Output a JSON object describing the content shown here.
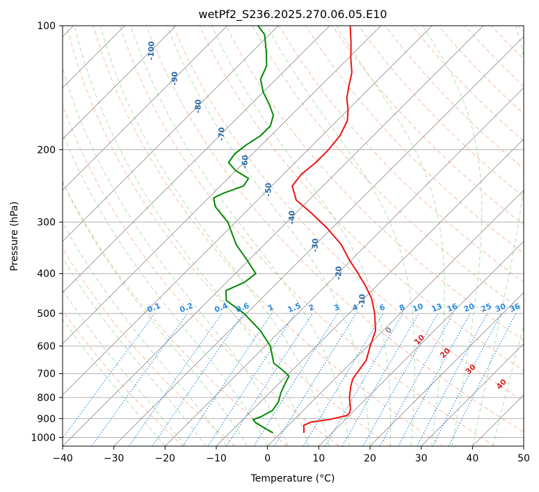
{
  "chart_data": {
    "type": "line",
    "title": "wetPf2_S236.2025.270.06.05.E10",
    "xlabel": "Temperature (°C)",
    "ylabel": "Pressure (hPa)",
    "xlim": [
      -40,
      50
    ],
    "ylim": [
      1050,
      100
    ],
    "y_scale": "log",
    "skew": "45 degree skew-T log-P",
    "grid": true,
    "x_ticks": [
      -40,
      -30,
      -20,
      -10,
      0,
      10,
      20,
      30,
      40,
      50
    ],
    "y_ticks": [
      100,
      200,
      300,
      400,
      500,
      600,
      700,
      800,
      900,
      1000
    ],
    "series": [
      {
        "name": "Temperature",
        "color": "#ee1111",
        "points": [
          {
            "p": 975,
            "t": 4.5
          },
          {
            "p": 955,
            "t": 3.8
          },
          {
            "p": 935,
            "t": 3.0
          },
          {
            "p": 918,
            "t": 3.8
          },
          {
            "p": 905,
            "t": 6.8
          },
          {
            "p": 885,
            "t": 9.5
          },
          {
            "p": 870,
            "t": 9.5
          },
          {
            "p": 850,
            "t": 8.8
          },
          {
            "p": 800,
            "t": 6.5
          },
          {
            "p": 750,
            "t": 4.5
          },
          {
            "p": 720,
            "t": 3.5
          },
          {
            "p": 700,
            "t": 3.2
          },
          {
            "p": 650,
            "t": 2.5
          },
          {
            "p": 600,
            "t": 0.5
          },
          {
            "p": 550,
            "t": -1.5
          },
          {
            "p": 500,
            "t": -5.0
          },
          {
            "p": 460,
            "t": -8.5
          },
          {
            "p": 430,
            "t": -12.0
          },
          {
            "p": 400,
            "t": -16.0
          },
          {
            "p": 370,
            "t": -20.5
          },
          {
            "p": 340,
            "t": -25.0
          },
          {
            "p": 310,
            "t": -31.0
          },
          {
            "p": 285,
            "t": -37.0
          },
          {
            "p": 265,
            "t": -42.5
          },
          {
            "p": 245,
            "t": -46.0
          },
          {
            "p": 230,
            "t": -46.5
          },
          {
            "p": 215,
            "t": -46.0
          },
          {
            "p": 200,
            "t": -46.0
          },
          {
            "p": 185,
            "t": -46.5
          },
          {
            "p": 170,
            "t": -48.0
          },
          {
            "p": 160,
            "t": -50.0
          },
          {
            "p": 150,
            "t": -52.5
          },
          {
            "p": 140,
            "t": -54.5
          },
          {
            "p": 130,
            "t": -56.5
          },
          {
            "p": 120,
            "t": -59.5
          },
          {
            "p": 110,
            "t": -62.5
          },
          {
            "p": 100,
            "t": -66.0
          }
        ]
      },
      {
        "name": "Dewpoint",
        "color": "#008800",
        "points": [
          {
            "p": 975,
            "t": -1.5
          },
          {
            "p": 945,
            "t": -4.5
          },
          {
            "p": 920,
            "t": -7.0
          },
          {
            "p": 905,
            "t": -8.0
          },
          {
            "p": 890,
            "t": -7.0
          },
          {
            "p": 860,
            "t": -6.0
          },
          {
            "p": 820,
            "t": -6.5
          },
          {
            "p": 780,
            "t": -7.8
          },
          {
            "p": 740,
            "t": -8.8
          },
          {
            "p": 710,
            "t": -9.5
          },
          {
            "p": 690,
            "t": -11.5
          },
          {
            "p": 660,
            "t": -15.0
          },
          {
            "p": 600,
            "t": -19.0
          },
          {
            "p": 550,
            "t": -24.0
          },
          {
            "p": 500,
            "t": -30.5
          },
          {
            "p": 465,
            "t": -36.5
          },
          {
            "p": 440,
            "t": -38.5
          },
          {
            "p": 420,
            "t": -36.5
          },
          {
            "p": 400,
            "t": -36.0
          },
          {
            "p": 370,
            "t": -40.5
          },
          {
            "p": 340,
            "t": -45.5
          },
          {
            "p": 300,
            "t": -51.5
          },
          {
            "p": 275,
            "t": -57.0
          },
          {
            "p": 262,
            "t": -59.0
          },
          {
            "p": 255,
            "t": -58.0
          },
          {
            "p": 245,
            "t": -55.5
          },
          {
            "p": 235,
            "t": -56.0
          },
          {
            "p": 225,
            "t": -60.0
          },
          {
            "p": 215,
            "t": -63.0
          },
          {
            "p": 205,
            "t": -63.5
          },
          {
            "p": 195,
            "t": -63.0
          },
          {
            "p": 185,
            "t": -62.0
          },
          {
            "p": 175,
            "t": -62.0
          },
          {
            "p": 165,
            "t": -63.5
          },
          {
            "p": 155,
            "t": -66.5
          },
          {
            "p": 145,
            "t": -70.0
          },
          {
            "p": 135,
            "t": -73.0
          },
          {
            "p": 125,
            "t": -74.5
          },
          {
            "p": 115,
            "t": -77.5
          },
          {
            "p": 105,
            "t": -81.0
          },
          {
            "p": 100,
            "t": -84.0
          }
        ]
      }
    ],
    "isotherm_labels": [
      "-100",
      "-90",
      "-80",
      "-70",
      "-60",
      "-50",
      "-40",
      "-30",
      "-20",
      "-10"
    ],
    "mixing_ratio_labels": [
      "0.1",
      "0.2",
      "0.4",
      "0.6",
      "1",
      "1.5",
      "2",
      "3",
      "4",
      "6",
      "8",
      "10",
      "13",
      "16",
      "20",
      "25",
      "30",
      "36"
    ],
    "extra_labels": [
      "0",
      "10",
      "20",
      "30",
      "40"
    ]
  },
  "colors": {
    "temperature": "#ee1111",
    "dewpoint": "#008800",
    "isotherm_label": "#2a6aa8",
    "mixing_ratio": "#2b8ae0",
    "dry_adiabat": "#f4a582",
    "moist_adiabat": "#9fd49f",
    "skewed_isotherm": "#a0a0a0",
    "extra_label": "#dd2222"
  }
}
